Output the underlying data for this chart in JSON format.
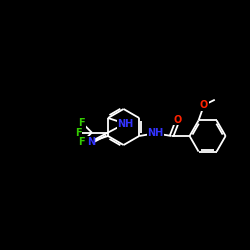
{
  "background_color": "#000000",
  "bond_color": "#ffffff",
  "atom_colors": {
    "N": "#3333ff",
    "F": "#33cc00",
    "O": "#ff2200",
    "H": "#ffffff",
    "C": "#ffffff"
  },
  "figsize": [
    2.5,
    2.5
  ],
  "dpi": 100
}
